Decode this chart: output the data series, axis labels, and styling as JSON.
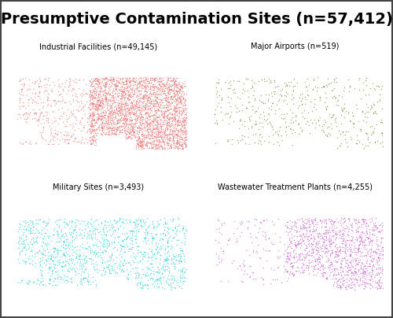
{
  "title": "Presumptive Contamination Sites (n=57,412)",
  "title_fontsize": 14,
  "title_fontweight": "bold",
  "panels": [
    {
      "label": "Industrial Facilities (n=49,145)",
      "dot_color": "#F07070",
      "n_dots": 3500,
      "seed": 42,
      "eastern_heavy": true
    },
    {
      "label": "Major Airports (n=519)",
      "dot_color": "#6B8B23",
      "n_dots": 519,
      "seed": 123,
      "eastern_heavy": false
    },
    {
      "label": "Military Sites (n=3,493)",
      "dot_color": "#00CED1",
      "n_dots": 1200,
      "seed": 7,
      "eastern_heavy": false
    },
    {
      "label": "Wastewater Treatment Plants (n=4,255)",
      "dot_color": "#CC55CC",
      "n_dots": 1400,
      "seed": 99,
      "eastern_heavy": true
    }
  ],
  "background_color": "#ffffff",
  "panel_bg": "#e0e0e0",
  "map_fill": "#ffffff",
  "map_border": "#222222",
  "state_border": "#333333",
  "title_bg": "#cccccc",
  "label_fontsize": 7.0,
  "alaska_dot_color_scale": 0.3,
  "hawaii_dot_color_scale": 0.05
}
